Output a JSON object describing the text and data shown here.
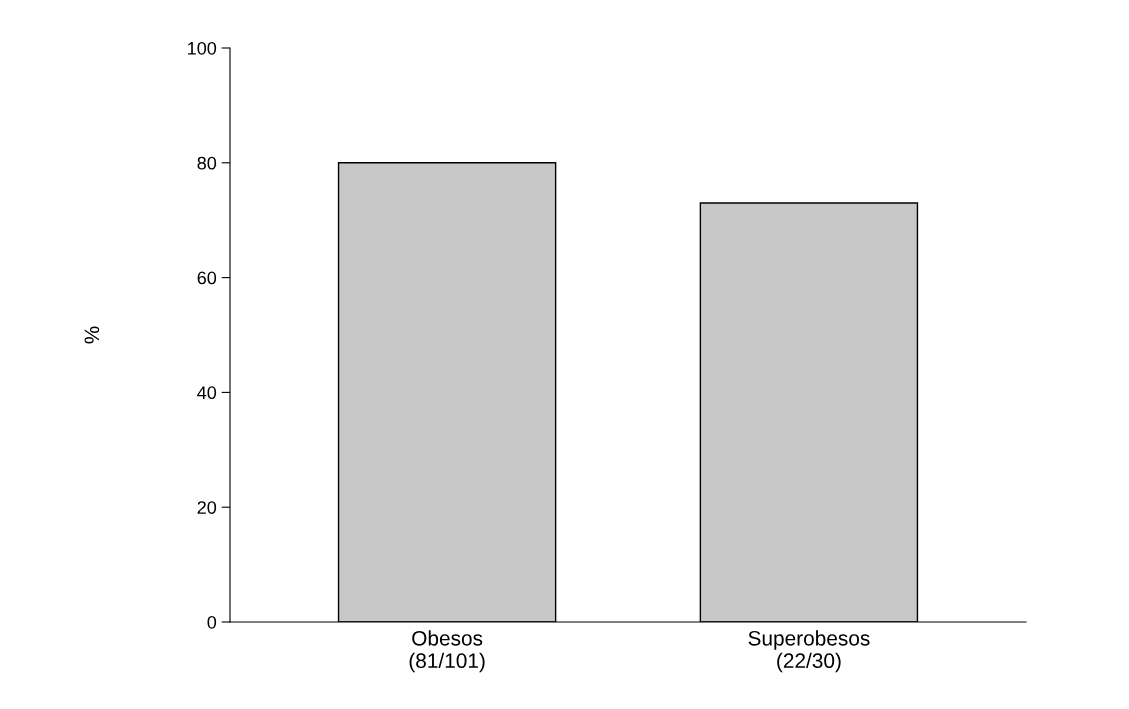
{
  "chart_data": {
    "type": "bar",
    "ylabel": "%",
    "categories": [
      "Obesos\n(81/101)",
      "Superobesos\n(22/30)"
    ],
    "values": [
      80,
      73
    ],
    "color": "#c8c8c8",
    "ylim": [
      0,
      100
    ],
    "yticks": [
      0,
      20,
      40,
      60,
      80,
      100
    ],
    "grid": false,
    "legend": false
  }
}
